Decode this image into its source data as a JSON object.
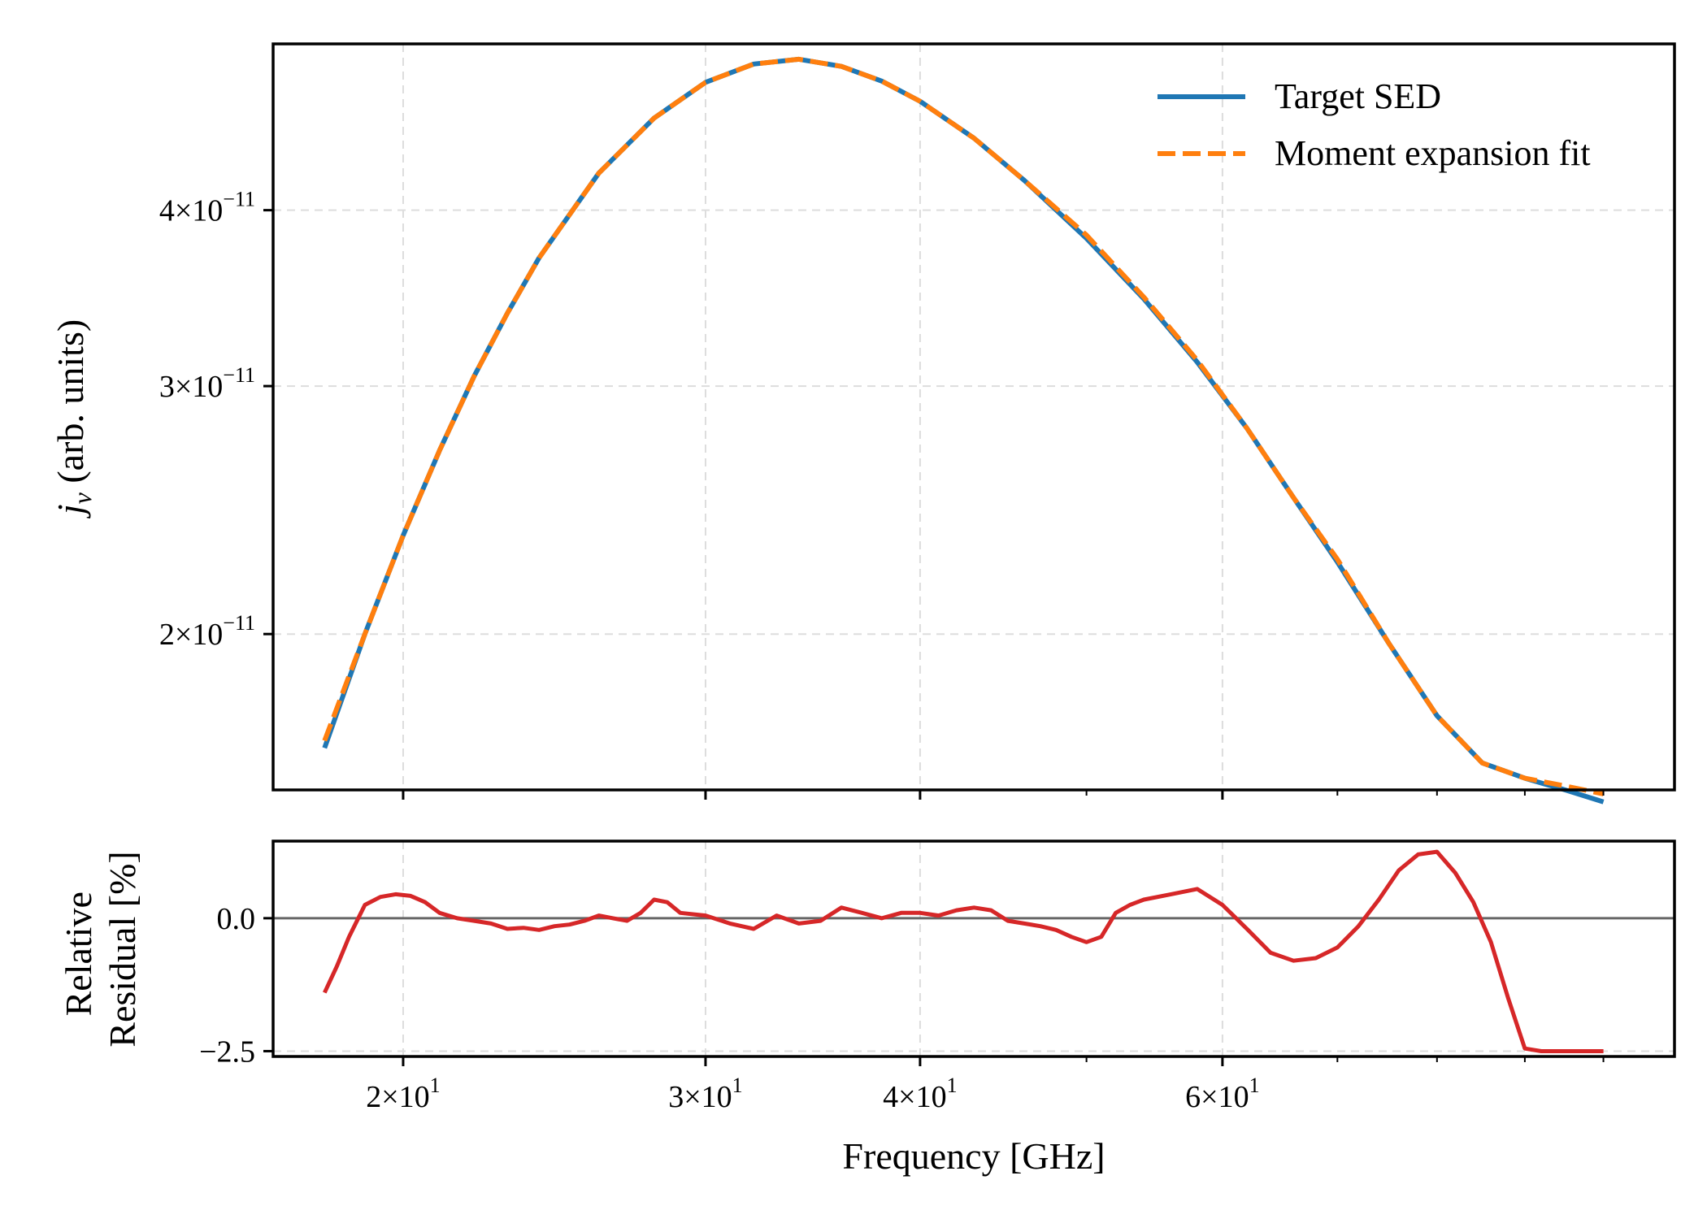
{
  "chart_data": [
    {
      "type": "line",
      "panel": "top",
      "ylabel": "j_ν (arb. units)",
      "ylabel_main": "j",
      "ylabel_sub": "ν",
      "ylabel_rest": " (arb. units)",
      "yscale": "log",
      "xscale": "log",
      "grid": true,
      "legend": "top-right",
      "xlim": [
        16.8,
        110
      ],
      "ylim": [
        1.55e-11,
        5.25e-11
      ],
      "yticks": [
        {
          "value": 2e-11,
          "mant": "2",
          "base": "10",
          "exp": "−11"
        },
        {
          "value": 3e-11,
          "mant": "3",
          "base": "10",
          "exp": "−11"
        },
        {
          "value": 4e-11,
          "mant": "4",
          "base": "10",
          "exp": "−11"
        }
      ],
      "series": [
        {
          "name": "Target SED",
          "color": "#1f77b4",
          "style": "solid",
          "x": [
            18.0,
            19.0,
            20.0,
            21.0,
            22.0,
            23.0,
            24.0,
            26.0,
            28.0,
            30.0,
            32.0,
            34.0,
            36.0,
            38.0,
            40.0,
            43.0,
            46.0,
            50.0,
            54.0,
            58.0,
            62.0,
            66.0,
            70.0,
            75.0,
            80.0,
            85.0,
            90.0,
            95.0,
            100.0
          ],
          "y": [
            1.66e-11,
            2e-11,
            2.35e-11,
            2.7e-11,
            3.05e-11,
            3.38e-11,
            3.7e-11,
            4.25e-11,
            4.65e-11,
            4.93e-11,
            5.08e-11,
            5.12e-11,
            5.06e-11,
            4.94e-11,
            4.78e-11,
            4.5e-11,
            4.2e-11,
            3.82e-11,
            3.46e-11,
            3.12e-11,
            2.8e-11,
            2.5e-11,
            2.25e-11,
            1.97e-11,
            1.75e-11,
            1.62e-11,
            1.58e-11,
            1.55e-11,
            1.52e-11
          ]
        },
        {
          "name": "Moment expansion fit",
          "color": "#ff7f0e",
          "style": "dashed",
          "x": [
            18.0,
            19.0,
            20.0,
            21.0,
            22.0,
            23.0,
            24.0,
            26.0,
            28.0,
            30.0,
            32.0,
            34.0,
            36.0,
            38.0,
            40.0,
            43.0,
            46.0,
            50.0,
            54.0,
            58.0,
            62.0,
            66.0,
            70.0,
            75.0,
            80.0,
            85.0,
            90.0,
            95.0,
            100.0
          ],
          "y": [
            1.68e-11,
            2e-11,
            2.35e-11,
            2.7e-11,
            3.05e-11,
            3.38e-11,
            3.7e-11,
            4.25e-11,
            4.65e-11,
            4.93e-11,
            5.08e-11,
            5.12e-11,
            5.06e-11,
            4.94e-11,
            4.78e-11,
            4.5e-11,
            4.2e-11,
            3.84e-11,
            3.47e-11,
            3.13e-11,
            2.8e-11,
            2.5e-11,
            2.26e-11,
            1.97e-11,
            1.75e-11,
            1.62e-11,
            1.58e-11,
            1.56e-11,
            1.54e-11
          ]
        }
      ]
    },
    {
      "type": "line",
      "panel": "bottom",
      "xlabel": "Frequency [GHz]",
      "ylabel_lines": [
        "Relative",
        "Residual [%]"
      ],
      "xscale": "log",
      "grid": true,
      "xlim": [
        16.8,
        110
      ],
      "ylim": [
        -2.6,
        1.45
      ],
      "zero_line_color": "#666666",
      "yticks": [
        {
          "value": 0.0,
          "label": "0.0"
        },
        {
          "value": -2.5,
          "label": "−2.5"
        }
      ],
      "xticks": [
        {
          "value": 20,
          "mant": "2",
          "base": "10",
          "exp": "1"
        },
        {
          "value": 30,
          "mant": "3",
          "base": "10",
          "exp": "1"
        },
        {
          "value": 40,
          "mant": "4",
          "base": "10",
          "exp": "1"
        },
        {
          "value": 60,
          "mant": "6",
          "base": "10",
          "exp": "1"
        }
      ],
      "minor_xticks": [
        50,
        70,
        80,
        90,
        100
      ],
      "series": [
        {
          "color": "#d62728",
          "style": "solid",
          "x": [
            18.0,
            18.3,
            18.6,
            19.0,
            19.4,
            19.8,
            20.2,
            20.6,
            21.0,
            21.5,
            22.0,
            22.5,
            23.0,
            23.5,
            24.0,
            24.5,
            25.0,
            25.5,
            26.0,
            26.5,
            27.0,
            27.5,
            28.0,
            28.5,
            29.0,
            30.0,
            31.0,
            32.0,
            33.0,
            34.0,
            35.0,
            36.0,
            37.0,
            38.0,
            39.0,
            40.0,
            41.0,
            42.0,
            43.0,
            44.0,
            45.0,
            46.0,
            47.0,
            48.0,
            49.0,
            50.0,
            51.0,
            52.0,
            53.0,
            54.0,
            56.0,
            58.0,
            60.0,
            62.0,
            64.0,
            66.0,
            68.0,
            70.0,
            72.0,
            74.0,
            76.0,
            78.0,
            80.0,
            82.0,
            84.0,
            86.0,
            88.0,
            90.0,
            92.0,
            94.0,
            96.0,
            98.0,
            100.0
          ],
          "y": [
            -1.4,
            -0.9,
            -0.35,
            0.25,
            0.4,
            0.45,
            0.42,
            0.3,
            0.1,
            0.0,
            -0.05,
            -0.1,
            -0.2,
            -0.18,
            -0.22,
            -0.15,
            -0.12,
            -0.05,
            0.05,
            0.0,
            -0.05,
            0.1,
            0.35,
            0.3,
            0.1,
            0.05,
            -0.1,
            -0.2,
            0.05,
            -0.1,
            -0.05,
            0.2,
            0.1,
            0.0,
            0.1,
            0.1,
            0.05,
            0.15,
            0.2,
            0.15,
            -0.05,
            -0.1,
            -0.15,
            -0.22,
            -0.35,
            -0.45,
            -0.35,
            0.1,
            0.25,
            0.35,
            0.45,
            0.55,
            0.25,
            -0.2,
            -0.65,
            -0.8,
            -0.75,
            -0.55,
            -0.15,
            0.35,
            0.9,
            1.2,
            1.25,
            0.85,
            0.3,
            -0.45,
            -1.5,
            -2.45,
            -2.5,
            -2.5,
            -2.5,
            -2.5,
            -2.5
          ]
        }
      ]
    }
  ]
}
